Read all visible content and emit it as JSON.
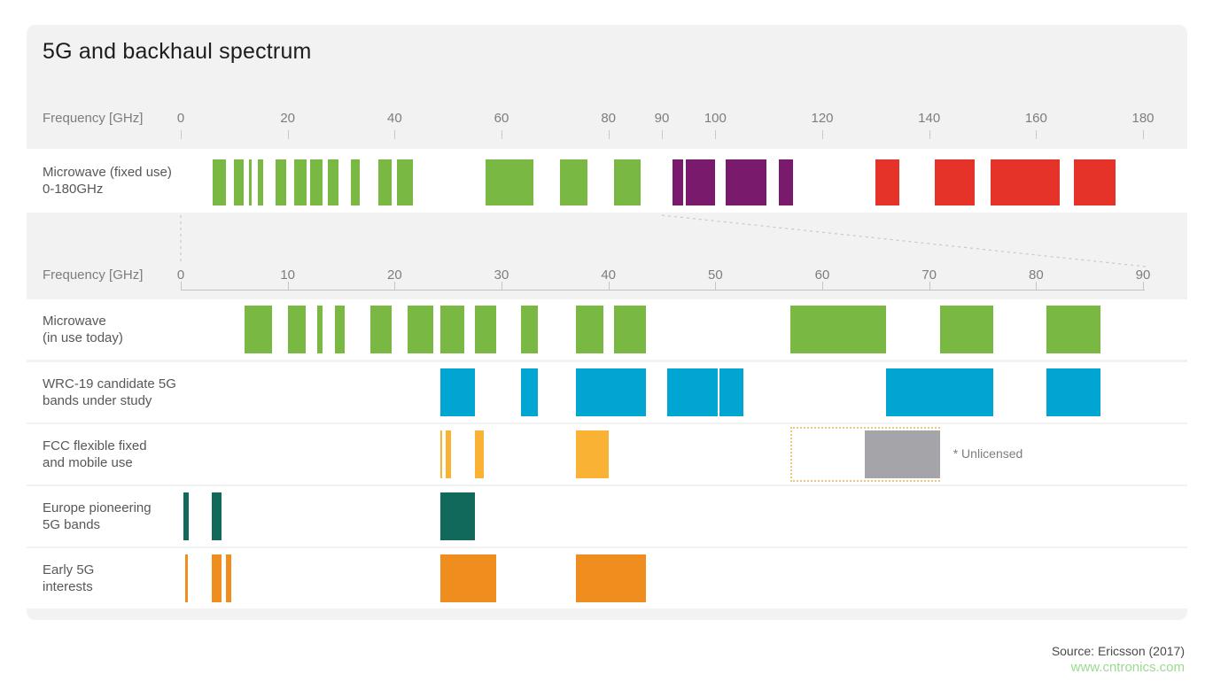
{
  "title": "5G and backhaul spectrum",
  "source": "Source: Ericsson (2017)",
  "watermark": "www.cntronics.com",
  "colors": {
    "card_bg": "#f2f2f2",
    "row_bg": "#ffffff",
    "green": "#79b943",
    "purple": "#7a1a6c",
    "red": "#e6332a",
    "cyan": "#00a5d1",
    "amber": "#f9b233",
    "gray": "#a5a5a9",
    "teal": "#11695c",
    "orange": "#ef8e1f",
    "guide_dash": "#c9c9c9",
    "outline_dotted": "#e9c87d"
  },
  "chart_data": {
    "type": "bar",
    "variant": "frequency-spectrum-interval-bands",
    "title": "5G and backhaul spectrum",
    "legend_position": "none",
    "grid": false,
    "axes": [
      {
        "id": "ghz180",
        "label": "Frequency [GHz]",
        "min": 0,
        "max": 180,
        "ticks": [
          0,
          20,
          40,
          60,
          80,
          90,
          100,
          120,
          140,
          160,
          180
        ],
        "baseline": false
      },
      {
        "id": "ghz90",
        "label": "Frequency [GHz]",
        "min": 0,
        "max": 90,
        "ticks": [
          0,
          10,
          20,
          30,
          40,
          50,
          60,
          70,
          80,
          90
        ],
        "baseline": true
      }
    ],
    "zoom_link": {
      "note": "dashed guides map 0-90 GHz of top axis onto full second axis",
      "range_ghz": [
        0,
        90
      ]
    },
    "rows": [
      {
        "label_lines": [
          "Microwave (fixed use)",
          "0-180GHz"
        ],
        "axis": "ghz180",
        "segments": [
          {
            "band": [
              6,
              8.5
            ],
            "color": "green"
          },
          {
            "band": [
              10,
              11.7
            ],
            "color": "green"
          },
          {
            "band": [
              12.75,
              13.25
            ],
            "color": "green"
          },
          {
            "band": [
              14.4,
              15.35
            ],
            "color": "green"
          },
          {
            "band": [
              17.7,
              19.7
            ],
            "color": "green"
          },
          {
            "band": [
              21.2,
              23.6
            ],
            "color": "green"
          },
          {
            "band": [
              24.25,
              26.5
            ],
            "color": "green"
          },
          {
            "band": [
              27.5,
              29.5
            ],
            "color": "green"
          },
          {
            "band": [
              31.8,
              33.4
            ],
            "color": "green"
          },
          {
            "band": [
              37,
              39.5
            ],
            "color": "green"
          },
          {
            "band": [
              40.5,
              43.5
            ],
            "color": "green"
          },
          {
            "band": [
              57,
              66
            ],
            "color": "green"
          },
          {
            "band": [
              71,
              76
            ],
            "color": "green"
          },
          {
            "band": [
              81,
              86
            ],
            "color": "green"
          },
          {
            "band": [
              92,
              94
            ],
            "color": "purple"
          },
          {
            "band": [
              94.5,
              100
            ],
            "color": "purple"
          },
          {
            "band": [
              102,
              109.5
            ],
            "color": "purple"
          },
          {
            "band": [
              111.8,
              114.5
            ],
            "color": "purple"
          },
          {
            "band": [
              130,
              134.5
            ],
            "color": "red"
          },
          {
            "band": [
              141,
              148.5
            ],
            "color": "red"
          },
          {
            "band": [
              151.5,
              164.5
            ],
            "color": "red"
          },
          {
            "band": [
              167,
              174.8
            ],
            "color": "red"
          }
        ]
      },
      {
        "label_lines": [
          "Microwave",
          "(in use today)"
        ],
        "axis": "ghz90",
        "segments": [
          {
            "band": [
              6,
              8.5
            ],
            "color": "green"
          },
          {
            "band": [
              10,
              11.7
            ],
            "color": "green"
          },
          {
            "band": [
              12.75,
              13.25
            ],
            "color": "green"
          },
          {
            "band": [
              14.4,
              15.35
            ],
            "color": "green"
          },
          {
            "band": [
              17.7,
              19.7
            ],
            "color": "green"
          },
          {
            "band": [
              21.2,
              23.6
            ],
            "color": "green"
          },
          {
            "band": [
              24.25,
              26.5
            ],
            "color": "green"
          },
          {
            "band": [
              27.5,
              29.5
            ],
            "color": "green"
          },
          {
            "band": [
              31.8,
              33.4
            ],
            "color": "green"
          },
          {
            "band": [
              37,
              39.5
            ],
            "color": "green"
          },
          {
            "band": [
              40.5,
              43.5
            ],
            "color": "green"
          },
          {
            "band": [
              57,
              66
            ],
            "color": "green"
          },
          {
            "band": [
              71,
              76
            ],
            "color": "green"
          },
          {
            "band": [
              81,
              86
            ],
            "color": "green"
          }
        ]
      },
      {
        "label_lines": [
          "WRC-19 candidate 5G",
          "bands under study"
        ],
        "axis": "ghz90",
        "segments": [
          {
            "band": [
              24.25,
              27.5
            ],
            "color": "cyan"
          },
          {
            "band": [
              31.8,
              33.4
            ],
            "color": "cyan"
          },
          {
            "band": [
              37,
              43.5
            ],
            "color": "cyan"
          },
          {
            "band": [
              45.5,
              50.2
            ],
            "color": "cyan"
          },
          {
            "band": [
              50.4,
              52.6
            ],
            "color": "cyan"
          },
          {
            "band": [
              66,
              76
            ],
            "color": "cyan"
          },
          {
            "band": [
              81,
              86
            ],
            "color": "cyan"
          }
        ]
      },
      {
        "label_lines": [
          "FCC flexible fixed",
          "and mobile use"
        ],
        "axis": "ghz90",
        "segments": [
          {
            "band": [
              24.25,
              24.45
            ],
            "color": "amber"
          },
          {
            "band": [
              24.75,
              25.25
            ],
            "color": "amber"
          },
          {
            "band": [
              27.5,
              28.35
            ],
            "color": "amber"
          },
          {
            "band": [
              37,
              40
            ],
            "color": "amber"
          },
          {
            "band": [
              64,
              71
            ],
            "color": "gray"
          }
        ],
        "outline_box": {
          "band": [
            57,
            71
          ]
        },
        "note": "* Unlicensed"
      },
      {
        "label_lines": [
          "Europe pioneering",
          "5G bands"
        ],
        "axis": "ghz90",
        "segments": [
          {
            "band": [
              0.25,
              0.75
            ],
            "color": "teal"
          },
          {
            "band": [
              2.9,
              3.8
            ],
            "color": "teal"
          },
          {
            "band": [
              24.25,
              27.5
            ],
            "color": "teal"
          }
        ]
      },
      {
        "label_lines": [
          "Early 5G",
          "interests"
        ],
        "axis": "ghz90",
        "segments": [
          {
            "band": [
              0.4,
              0.7
            ],
            "color": "orange"
          },
          {
            "band": [
              2.9,
              3.8
            ],
            "color": "orange"
          },
          {
            "band": [
              4.2,
              4.7
            ],
            "color": "orange"
          },
          {
            "band": [
              24.25,
              29.5
            ],
            "color": "orange"
          },
          {
            "band": [
              37,
              43.5
            ],
            "color": "orange"
          }
        ]
      }
    ]
  }
}
